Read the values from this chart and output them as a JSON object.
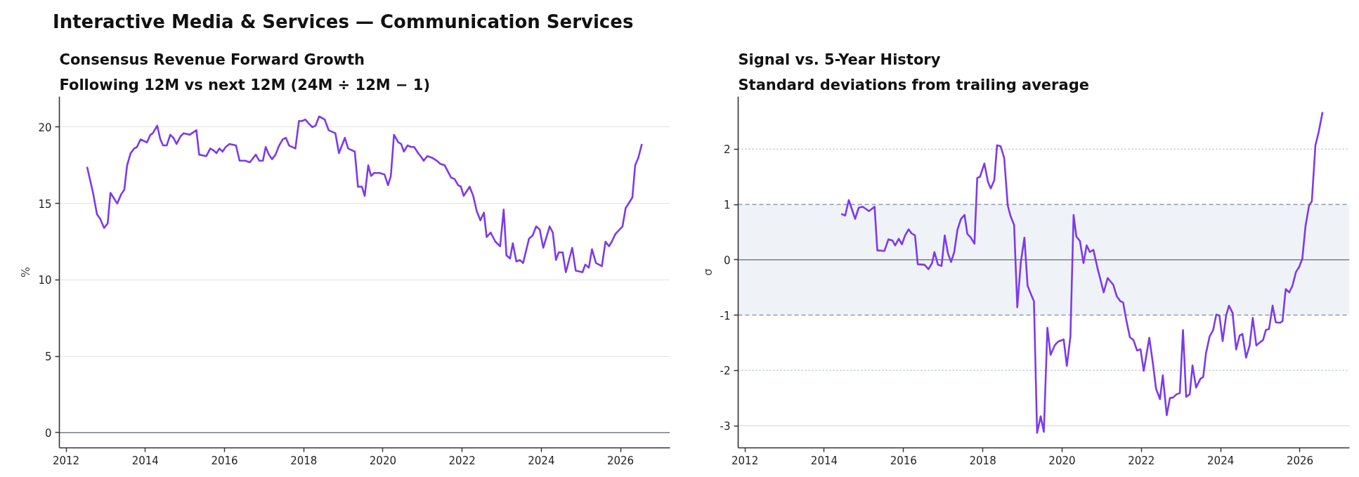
{
  "chart_data": [
    {
      "type": "line",
      "title": "Consensus Revenue Forward Growth",
      "subtitle": "Following 12M vs next 12M (24M ÷ 12M − 1)",
      "ylabel": "%",
      "annotations": [
        "Interactive Media & Services — Communication Services"
      ],
      "xlim": [
        2011.83,
        2027.25
      ],
      "ylim": [
        -1,
        22
      ],
      "xticks": [
        2012,
        2014,
        2016,
        2018,
        2020,
        2022,
        2024,
        2026
      ],
      "yticks": [
        0,
        5,
        10,
        15,
        20
      ],
      "grid": "y",
      "ref_lines": [
        {
          "axis": "y",
          "value": 0,
          "color": "#7b7f8a",
          "line_style": "solid"
        }
      ],
      "series": [
        {
          "color": "#7c3aed",
          "x": [
            2012.53,
            2012.68,
            2012.78,
            2012.86,
            2012.96,
            2013.05,
            2013.12,
            2013.29,
            2013.39,
            2013.47,
            2013.54,
            2013.63,
            2013.72,
            2013.79,
            2013.88,
            2014.04,
            2014.13,
            2014.19,
            2014.3,
            2014.38,
            2014.45,
            2014.54,
            2014.63,
            2014.71,
            2014.79,
            2014.89,
            2014.97,
            2015.12,
            2015.29,
            2015.36,
            2015.54,
            2015.64,
            2015.71,
            2015.8,
            2015.87,
            2015.95,
            2016.03,
            2016.13,
            2016.29,
            2016.38,
            2016.52,
            2016.64,
            2016.79,
            2016.88,
            2016.97,
            2017.04,
            2017.12,
            2017.2,
            2017.29,
            2017.38,
            2017.47,
            2017.55,
            2017.63,
            2017.79,
            2017.88,
            2017.96,
            2018.04,
            2018.14,
            2018.22,
            2018.3,
            2018.39,
            2018.53,
            2018.63,
            2018.8,
            2018.89,
            2019.04,
            2019.12,
            2019.29,
            2019.37,
            2019.47,
            2019.54,
            2019.63,
            2019.7,
            2019.78,
            2019.92,
            2020.04,
            2020.13,
            2020.2,
            2020.28,
            2020.39,
            2020.46,
            2020.53,
            2020.62,
            2020.71,
            2020.79,
            2020.89,
            2020.98,
            2021.03,
            2021.12,
            2021.24,
            2021.36,
            2021.45,
            2021.56,
            2021.72,
            2021.81,
            2021.9,
            2021.97,
            2022.04,
            2022.19,
            2022.28,
            2022.37,
            2022.46,
            2022.55,
            2022.62,
            2022.72,
            2022.84,
            2022.96,
            2023.05,
            2023.12,
            2023.21,
            2023.28,
            2023.37,
            2023.46,
            2023.54,
            2023.69,
            2023.78,
            2023.87,
            2023.96,
            2024.05,
            2024.21,
            2024.29,
            2024.37,
            2024.44,
            2024.54,
            2024.62,
            2024.78,
            2024.87,
            2025.04,
            2025.11,
            2025.2,
            2025.28,
            2025.38,
            2025.53,
            2025.62,
            2025.71,
            2025.78,
            2025.87,
            2025.94,
            2026.05,
            2026.13,
            2026.3,
            2026.37,
            2026.45,
            2026.54
          ],
          "values": [
            17.4,
            15.7,
            14.3,
            14.0,
            13.4,
            13.7,
            15.7,
            15.0,
            15.6,
            15.9,
            17.5,
            18.3,
            18.6,
            18.7,
            19.2,
            19.0,
            19.5,
            19.6,
            20.1,
            19.2,
            18.8,
            18.8,
            19.5,
            19.3,
            18.9,
            19.4,
            19.6,
            19.5,
            19.8,
            18.2,
            18.1,
            18.6,
            18.5,
            18.3,
            18.6,
            18.4,
            18.7,
            18.9,
            18.8,
            17.8,
            17.8,
            17.7,
            18.2,
            17.8,
            17.8,
            18.7,
            18.2,
            17.9,
            18.2,
            18.8,
            19.2,
            19.3,
            18.8,
            18.6,
            20.4,
            20.4,
            20.5,
            20.2,
            20.0,
            20.1,
            20.7,
            20.5,
            19.8,
            19.6,
            18.3,
            19.3,
            18.6,
            18.4,
            16.1,
            16.1,
            15.5,
            17.5,
            16.8,
            17.0,
            17.0,
            16.9,
            16.2,
            16.8,
            19.5,
            19.0,
            18.9,
            18.4,
            18.8,
            18.7,
            18.7,
            18.3,
            18.0,
            17.8,
            18.1,
            18.0,
            17.8,
            17.6,
            17.5,
            16.7,
            16.6,
            16.2,
            16.1,
            15.5,
            16.1,
            15.5,
            14.5,
            13.9,
            14.4,
            12.8,
            13.1,
            12.5,
            12.2,
            14.6,
            11.6,
            11.4,
            12.4,
            11.2,
            11.3,
            11.1,
            12.7,
            12.9,
            13.5,
            13.3,
            12.1,
            13.5,
            13.1,
            11.3,
            11.8,
            11.8,
            10.5,
            12.1,
            10.6,
            10.5,
            11.0,
            10.8,
            12.0,
            11.1,
            10.9,
            12.5,
            12.2,
            12.5,
            13.0,
            13.2,
            13.5,
            14.7,
            15.4,
            17.5,
            18.0,
            18.9
          ]
        }
      ]
    },
    {
      "type": "line",
      "title": "Signal vs. 5-Year History",
      "subtitle": "Standard deviations from trailing average",
      "ylabel": "σ",
      "xlim": [
        2011.83,
        2027.25
      ],
      "ylim": [
        -3.4,
        2.95
      ],
      "xticks": [
        2012,
        2014,
        2016,
        2018,
        2020,
        2022,
        2024,
        2026
      ],
      "yticks": [
        -3,
        -2,
        -1,
        0,
        1,
        2
      ],
      "bands": [
        {
          "axis": "y",
          "from": -1,
          "to": 1,
          "color": "#eff3f8"
        }
      ],
      "ref_lines": [
        {
          "axis": "y",
          "value": 0,
          "color": "#7b7f8a",
          "line_style": "solid"
        },
        {
          "axis": "y",
          "value": 1,
          "color": "#8c9bb5",
          "line_style": "dashed"
        },
        {
          "axis": "y",
          "value": -1,
          "color": "#8c9bb5",
          "line_style": "dashed"
        },
        {
          "axis": "y",
          "value": 2,
          "color": "#b8c4d6",
          "line_style": "dotted"
        },
        {
          "axis": "y",
          "value": -2,
          "color": "#b8c4d6",
          "line_style": "dotted"
        },
        {
          "axis": "y",
          "value": -3,
          "color": "#e0e0e0",
          "line_style": "solid"
        }
      ],
      "series": [
        {
          "color": "#7c3aed",
          "x": [
            2014.43,
            2014.53,
            2014.62,
            2014.78,
            2014.87,
            2014.97,
            2015.13,
            2015.27,
            2015.34,
            2015.52,
            2015.62,
            2015.72,
            2015.79,
            2015.88,
            2015.96,
            2016.04,
            2016.13,
            2016.2,
            2016.29,
            2016.36,
            2016.53,
            2016.63,
            2016.72,
            2016.78,
            2016.87,
            2016.96,
            2017.04,
            2017.12,
            2017.2,
            2017.28,
            2017.36,
            2017.45,
            2017.54,
            2017.61,
            2017.7,
            2017.79,
            2017.86,
            2017.93,
            2018.04,
            2018.13,
            2018.2,
            2018.29,
            2018.36,
            2018.45,
            2018.54,
            2018.63,
            2018.7,
            2018.79,
            2018.87,
            2018.96,
            2019.05,
            2019.13,
            2019.22,
            2019.29,
            2019.37,
            2019.46,
            2019.54,
            2019.63,
            2019.71,
            2019.82,
            2019.9,
            2020.04,
            2020.12,
            2020.21,
            2020.29,
            2020.36,
            2020.45,
            2020.54,
            2020.62,
            2020.7,
            2020.79,
            2020.9,
            2021.05,
            2021.15,
            2021.29,
            2021.38,
            2021.47,
            2021.54,
            2021.62,
            2021.71,
            2021.8,
            2021.89,
            2021.98,
            2022.06,
            2022.2,
            2022.29,
            2022.37,
            2022.47,
            2022.54,
            2022.64,
            2022.72,
            2022.8,
            2022.89,
            2022.97,
            2023.05,
            2023.13,
            2023.22,
            2023.29,
            2023.38,
            2023.49,
            2023.56,
            2023.63,
            2023.72,
            2023.81,
            2023.89,
            2023.97,
            2024.05,
            2024.14,
            2024.21,
            2024.3,
            2024.39,
            2024.48,
            2024.55,
            2024.64,
            2024.73,
            2024.81,
            2024.9,
            2024.98,
            2025.07,
            2025.14,
            2025.22,
            2025.31,
            2025.39,
            2025.49,
            2025.56,
            2025.64,
            2025.73,
            2025.81,
            2025.9,
            2025.98,
            2026.06,
            2026.14,
            2026.23,
            2026.3,
            2026.39,
            2026.47,
            2026.57
          ],
          "values": [
            0.83,
            0.8,
            1.08,
            0.74,
            0.94,
            0.96,
            0.88,
            0.96,
            0.17,
            0.16,
            0.37,
            0.35,
            0.26,
            0.38,
            0.28,
            0.44,
            0.55,
            0.48,
            0.44,
            -0.08,
            -0.09,
            -0.17,
            -0.06,
            0.14,
            -0.09,
            -0.11,
            0.44,
            0.12,
            -0.04,
            0.14,
            0.54,
            0.74,
            0.81,
            0.47,
            0.4,
            0.29,
            1.48,
            1.5,
            1.74,
            1.41,
            1.29,
            1.44,
            2.07,
            2.05,
            1.84,
            0.98,
            0.79,
            0.63,
            -0.86,
            -0.04,
            0.4,
            -0.47,
            -0.63,
            -0.75,
            -3.13,
            -2.83,
            -3.11,
            -1.23,
            -1.72,
            -1.54,
            -1.48,
            -1.44,
            -1.92,
            -1.39,
            0.81,
            0.42,
            0.34,
            -0.06,
            0.26,
            0.14,
            0.18,
            -0.17,
            -0.59,
            -0.33,
            -0.45,
            -0.66,
            -0.75,
            -0.77,
            -1.09,
            -1.4,
            -1.45,
            -1.64,
            -1.62,
            -2.01,
            -1.41,
            -1.87,
            -2.33,
            -2.52,
            -2.09,
            -2.81,
            -2.5,
            -2.49,
            -2.43,
            -2.41,
            -1.27,
            -2.48,
            -2.43,
            -1.91,
            -2.31,
            -2.15,
            -2.12,
            -1.69,
            -1.39,
            -1.27,
            -0.99,
            -1.01,
            -1.47,
            -1.0,
            -0.83,
            -0.96,
            -1.62,
            -1.37,
            -1.34,
            -1.77,
            -1.55,
            -1.05,
            -1.55,
            -1.5,
            -1.45,
            -1.27,
            -1.25,
            -0.83,
            -1.13,
            -1.14,
            -1.11,
            -0.53,
            -0.59,
            -0.47,
            -0.22,
            -0.13,
            0.02,
            0.61,
            0.98,
            1.06,
            2.07,
            2.3,
            2.67
          ]
        }
      ]
    }
  ]
}
